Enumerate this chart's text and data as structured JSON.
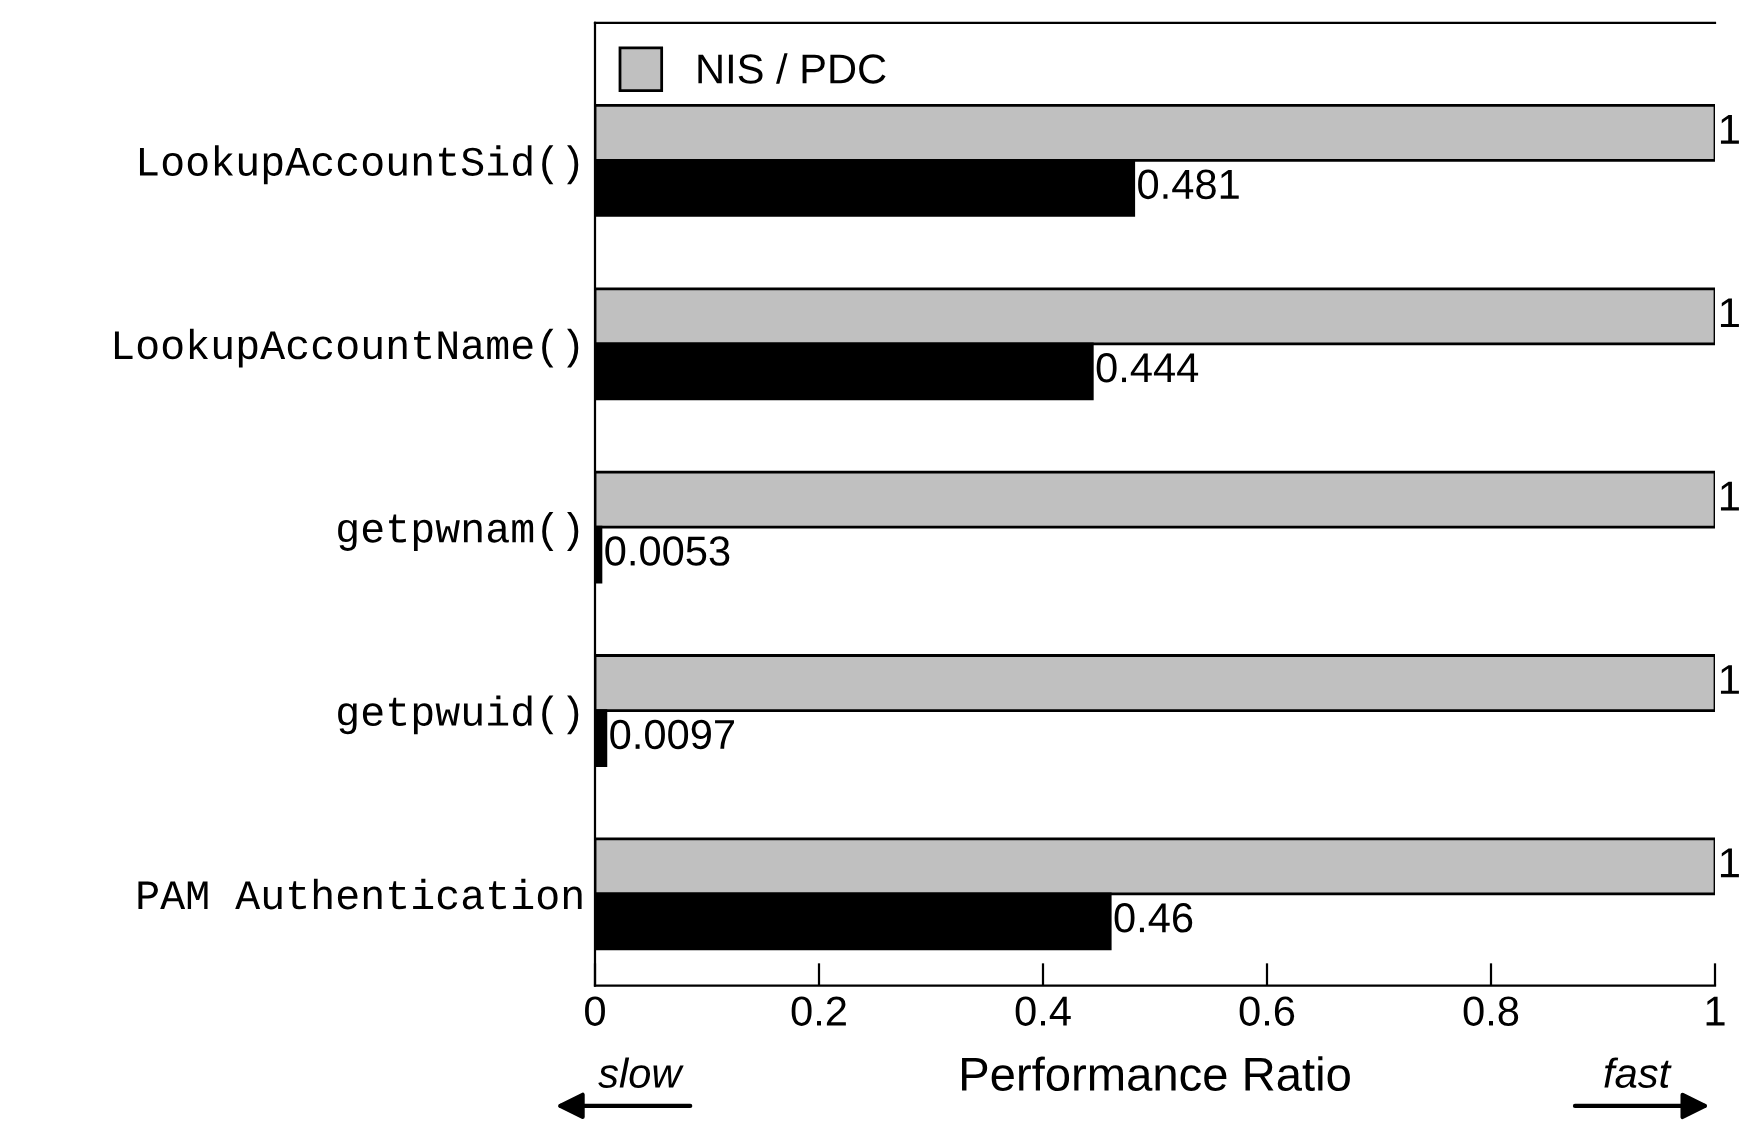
{
  "chart_data": {
    "type": "bar",
    "orientation": "horizontal",
    "xlabel": "Performance Ratio",
    "categories": [
      "LookupAccountSid()",
      "LookupAccountName()",
      "getpwnam()",
      "getpwuid()",
      "PAM Authentication"
    ],
    "series": [
      {
        "name": "NIS / PDC",
        "color": "#c0c0c0",
        "values": [
          1,
          1,
          1,
          1,
          1
        ]
      },
      {
        "color": "#000000",
        "values": [
          0.481,
          0.444,
          0.0053,
          0.0097,
          0.46
        ]
      }
    ],
    "xlim": [
      0,
      1
    ],
    "xticks": [
      0,
      0.2,
      0.4,
      0.6,
      0.8,
      1
    ],
    "data_labels": true,
    "grid": false,
    "legend": "top left",
    "annotations": [
      "slow",
      "fast"
    ]
  }
}
